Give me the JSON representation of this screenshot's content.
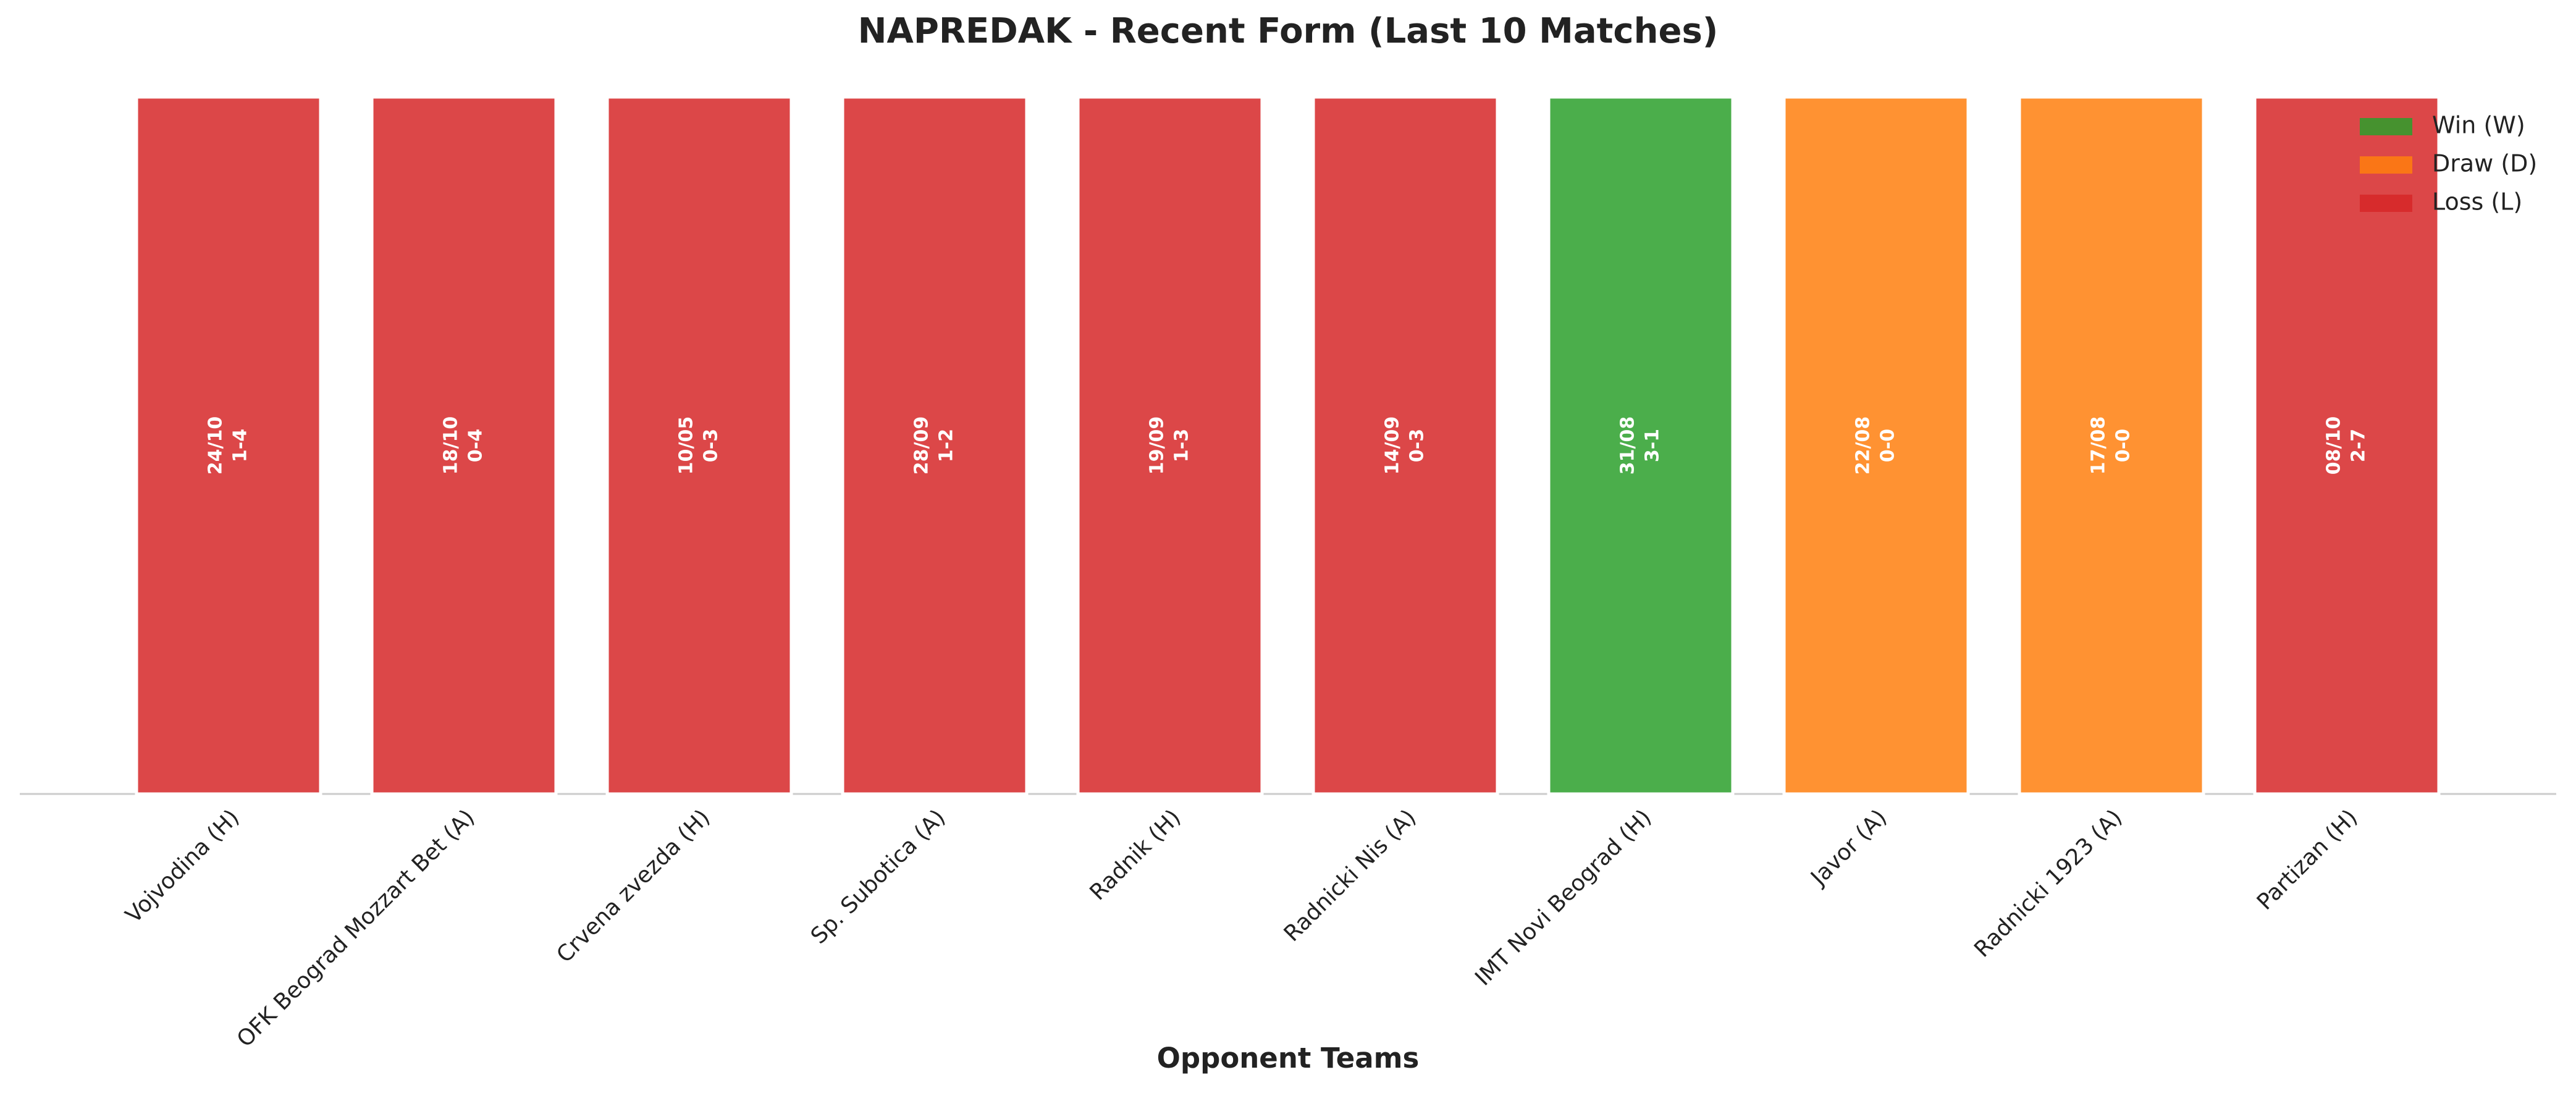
{
  "chart_data": {
    "type": "bar",
    "title": "NAPREDAK - Recent Form (Last 10 Matches)",
    "x_label": "Opponent Teams",
    "categories": [
      "Vojvodina (H)",
      "OFK Beograd Mozzart Bet (A)",
      "Crvena zvezda (H)",
      "Sp. Subotica (A)",
      "Radnik (H)",
      "Radnicki Nis (A)",
      "IMT Novi Beograd (H)",
      "Javor (A)",
      "Radnicki 1923 (A)",
      "Partizan (H)"
    ],
    "values": [
      1,
      1,
      1,
      1,
      1,
      1,
      1,
      1,
      1,
      1
    ],
    "dates": [
      "24/10",
      "18/10",
      "10/05",
      "28/09",
      "19/09",
      "14/09",
      "31/08",
      "22/08",
      "17/08",
      "08/10"
    ],
    "scores": [
      "1-4",
      "0-4",
      "0-3",
      "1-2",
      "1-3",
      "0-3",
      "3-1",
      "0-0",
      "0-0",
      "2-7"
    ],
    "colors": [
      "#d62728",
      "#d62728",
      "#d62728",
      "#d62728",
      "#d62728",
      "#d62728",
      "#2ca02c",
      "#ff7f0e",
      "#ff7f0e",
      "#d62728"
    ],
    "ylim": [
      0,
      1
    ],
    "legend": [
      {
        "name": "Win (W)",
        "color": "#2ca02c"
      },
      {
        "name": "Draw (D)",
        "color": "#ff7f0e"
      },
      {
        "name": "Loss (L)",
        "color": "#d62728"
      }
    ],
    "legend_loc": "upper right"
  }
}
